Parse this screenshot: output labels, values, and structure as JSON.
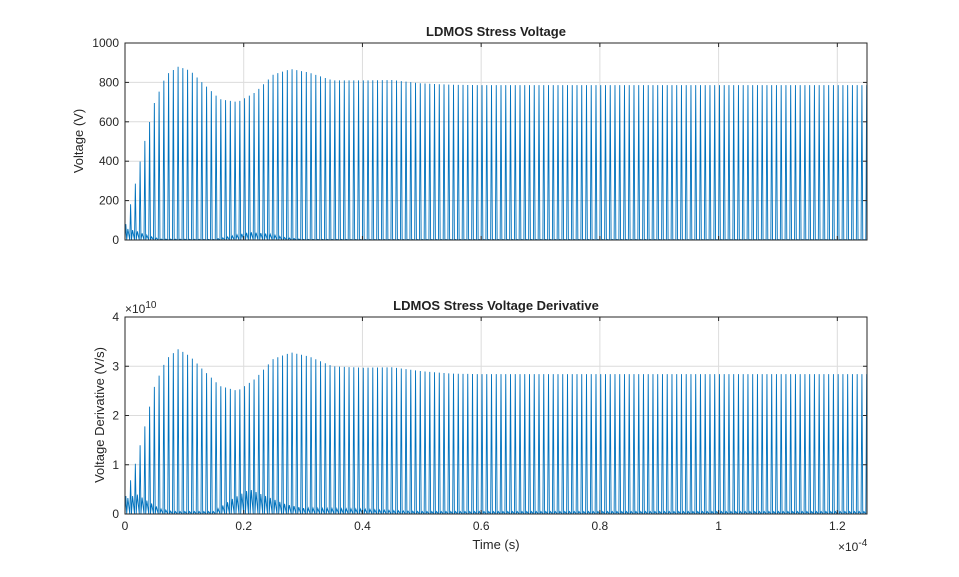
{
  "chart_data": [
    {
      "type": "line",
      "title": "LDMOS Stress Voltage",
      "xlabel": "",
      "ylabel": "Voltage (V)",
      "xlim": [
        0,
        1.25
      ],
      "ylim": [
        0,
        1000
      ],
      "x_ticks": [
        0,
        0.2,
        0.4,
        0.6,
        0.8,
        1,
        1.2
      ],
      "y_ticks": [
        0,
        200,
        400,
        600,
        800,
        1000
      ],
      "y_tick_labels": [
        "0",
        "200",
        "400",
        "600",
        "800",
        "1000"
      ],
      "y_exponent_label": "",
      "grid": true,
      "color": "#0072BD",
      "pulse_period": 0.008,
      "envelope_peaks": {
        "t": [
          0,
          0.015,
          0.03,
          0.05,
          0.07,
          0.09,
          0.11,
          0.13,
          0.16,
          0.19,
          0.22,
          0.25,
          0.28,
          0.31,
          0.35,
          0.4,
          0.45,
          0.5,
          0.55,
          0.6,
          0.7,
          0.8,
          1.0,
          1.25
        ],
        "v": [
          60,
          250,
          460,
          700,
          840,
          880,
          860,
          800,
          715,
          700,
          750,
          840,
          868,
          850,
          810,
          810,
          812,
          795,
          788,
          786,
          786,
          786,
          786,
          786
        ]
      },
      "low_envelope": {
        "t": [
          0,
          0.02,
          0.04,
          0.06,
          0.15,
          0.18,
          0.21,
          0.24,
          0.27,
          0.3,
          1.25
        ],
        "v": [
          60,
          45,
          20,
          5,
          3,
          20,
          40,
          32,
          12,
          3,
          2
        ]
      }
    },
    {
      "type": "line",
      "title": "LDMOS Stress Voltage Derivative",
      "xlabel": "Time (s)",
      "ylabel": "Voltage Derivative (V/s)",
      "xlim": [
        0,
        1.25
      ],
      "ylim": [
        0,
        4
      ],
      "x_ticks": [
        0,
        0.2,
        0.4,
        0.6,
        0.8,
        1,
        1.2
      ],
      "x_tick_labels": [
        "0",
        "0.2",
        "0.4",
        "0.6",
        "0.8",
        "1",
        "1.2"
      ],
      "x_exponent_label": "×10",
      "x_exponent_power": "-4",
      "y_ticks": [
        0,
        1,
        2,
        3,
        4
      ],
      "y_tick_labels": [
        "0",
        "1",
        "2",
        "3",
        "4"
      ],
      "y_exponent_label": "×10",
      "y_exponent_power": "10",
      "grid": true,
      "color": "#0072BD",
      "pulse_period": 0.008,
      "envelope_peaks": {
        "t": [
          0,
          0.015,
          0.03,
          0.05,
          0.07,
          0.09,
          0.11,
          0.13,
          0.16,
          0.19,
          0.22,
          0.25,
          0.28,
          0.31,
          0.35,
          0.4,
          0.45,
          0.5,
          0.55,
          0.6,
          0.7,
          0.8,
          1.0,
          1.25
        ],
        "v": [
          0.3,
          0.9,
          1.6,
          2.6,
          3.15,
          3.35,
          3.2,
          2.95,
          2.6,
          2.5,
          2.75,
          3.15,
          3.28,
          3.2,
          3.0,
          2.97,
          2.98,
          2.9,
          2.85,
          2.84,
          2.84,
          2.84,
          2.84,
          2.84
        ]
      },
      "low_envelope": {
        "t": [
          0,
          0.02,
          0.04,
          0.06,
          0.08,
          0.15,
          0.18,
          0.21,
          0.24,
          0.27,
          0.3,
          0.4,
          0.45,
          0.5,
          1.25
        ],
        "v": [
          0.3,
          0.4,
          0.25,
          0.1,
          0.05,
          0.05,
          0.3,
          0.5,
          0.35,
          0.2,
          0.12,
          0.1,
          0.07,
          0.05,
          0.05
        ]
      }
    }
  ]
}
